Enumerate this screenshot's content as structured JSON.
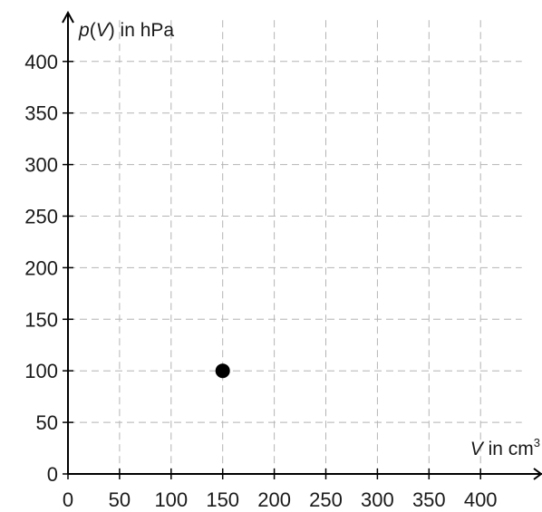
{
  "chart_data": {
    "type": "scatter",
    "title": "",
    "ylabel": {
      "var": "p",
      "open": "(",
      "arg": "V",
      "close": ")",
      "rest": " in hPa"
    },
    "xlabel": {
      "var": "V",
      "rest": " in cm",
      "sup": "3"
    },
    "xlim": [
      0,
      440
    ],
    "ylim": [
      0,
      440
    ],
    "xticks": [
      "0",
      "50",
      "100",
      "150",
      "200",
      "250",
      "300",
      "350",
      "400"
    ],
    "yticks": [
      "0",
      "50",
      "100",
      "150",
      "200",
      "250",
      "300",
      "350",
      "400"
    ],
    "grid": true,
    "grid_style": "dashed",
    "points": [
      {
        "x": 150,
        "y": 100
      }
    ],
    "colors": {
      "axis": "#000000",
      "grid": "#b4b4b4",
      "marker": "#000000",
      "text": "#1a1a1a"
    }
  }
}
